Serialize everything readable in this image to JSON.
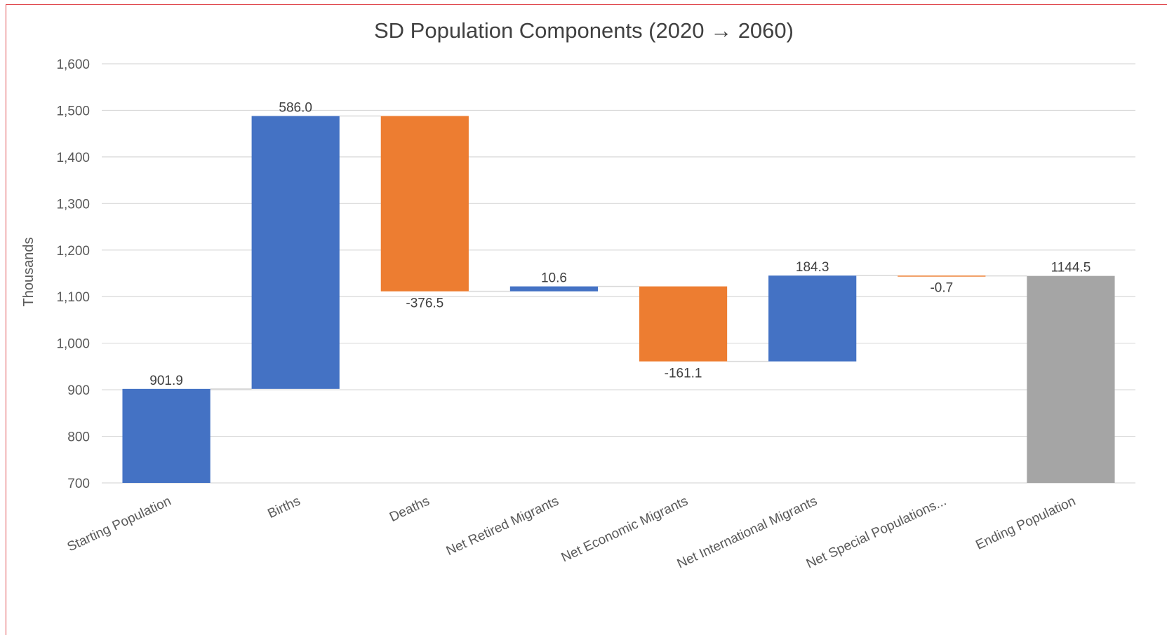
{
  "chart_data": {
    "type": "waterfall",
    "title": "SD Population Components (2020 → 2060)",
    "xlabel": "",
    "ylabel": "Thousands",
    "ylim": [
      700,
      1600
    ],
    "yticks": [
      700,
      800,
      900,
      1000,
      1100,
      1200,
      1300,
      1400,
      1500,
      1600
    ],
    "ytick_labels": [
      "700",
      "800",
      "900",
      "1,000",
      "1,100",
      "1,200",
      "1,300",
      "1,400",
      "1,500",
      "1,600"
    ],
    "grid": true,
    "legend": "none",
    "categories": [
      "Starting Population",
      "Births",
      "Deaths",
      "Net Retired Migrants",
      "Net Economic Migrants",
      "Net International Migrants",
      "Net Special Populations...",
      "Ending Population"
    ],
    "values": [
      901.9,
      586.0,
      -376.5,
      10.6,
      -161.1,
      184.3,
      -0.7,
      1144.5
    ],
    "data_labels": [
      "901.9",
      "586.0",
      "-376.5",
      "10.6",
      "-161.1",
      "184.3",
      "-0.7",
      "1144.5"
    ],
    "kinds": [
      "total",
      "increase",
      "decrease",
      "increase",
      "decrease",
      "increase",
      "decrease",
      "total"
    ],
    "colors": {
      "increase": "#4472C4",
      "decrease": "#ED7D31",
      "total": "#A5A5A5",
      "start": "#4472C4",
      "grid": "#D9D9D9",
      "connector": "#D9D9D9"
    }
  }
}
